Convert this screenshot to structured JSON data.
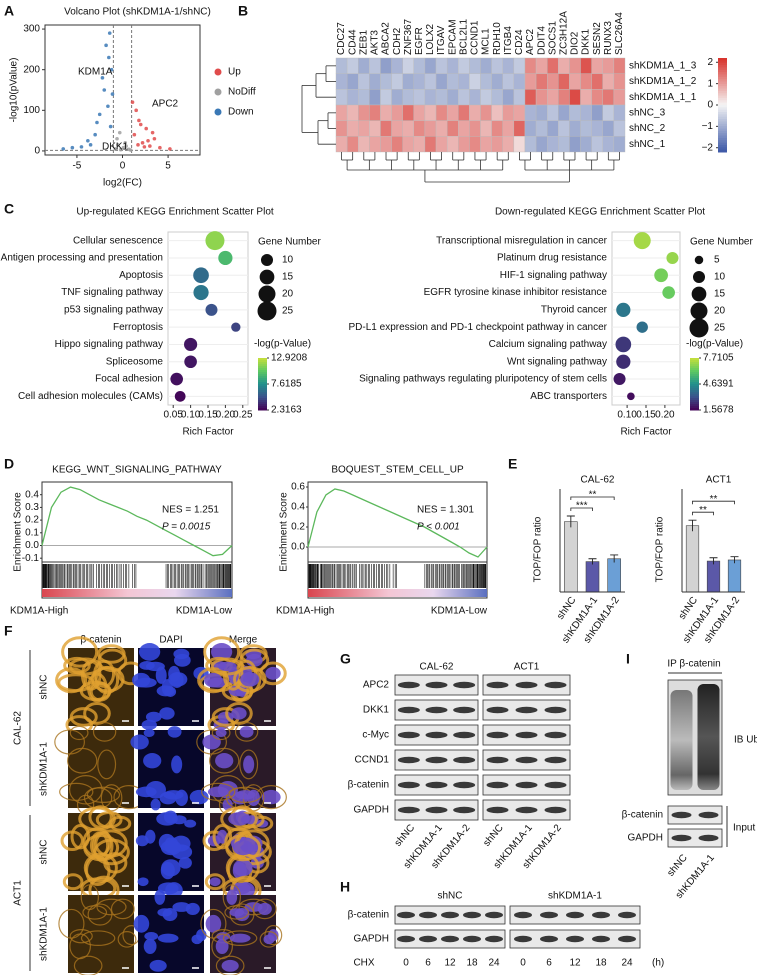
{
  "panel_labels": [
    "A",
    "B",
    "C",
    "D",
    "E",
    "F",
    "G",
    "H",
    "I"
  ],
  "chart_data": [
    {
      "type": "scatter",
      "title": "Volcano Plot (shKDM1A-1/shNC)",
      "xlabel": "log2(FC)",
      "ylabel": "-log10(pValue)",
      "xlim": [
        -8.5,
        8.5
      ],
      "ylim": [
        -10,
        310
      ],
      "xticks": [
        -5,
        0,
        5
      ],
      "yticks": [
        0,
        100,
        200,
        300
      ],
      "cutoffs": {
        "x": [
          -1,
          1
        ],
        "y": 1.3
      },
      "series": [
        {
          "name": "Up",
          "color": "#e04b4b",
          "x": [
            1.3,
            1.8,
            2.2,
            2.6,
            3.0,
            3.5,
            4.1,
            1.5,
            2.0,
            2.8,
            1.1,
            5.2,
            1.7,
            2.4,
            3.3
          ],
          "y": [
            40,
            75,
            20,
            55,
            12,
            30,
            8,
            100,
            65,
            25,
            120,
            5,
            15,
            10,
            45
          ]
        },
        {
          "name": "NoDiff",
          "color": "#a0a0a0",
          "x": [
            -0.8,
            -0.5,
            -0.2,
            0.1,
            0.4,
            0.7,
            -0.6,
            0.3,
            0.9,
            -0.3
          ],
          "y": [
            5,
            15,
            3,
            8,
            12,
            4,
            30,
            20,
            2,
            45
          ]
        },
        {
          "name": "Down",
          "color": "#3a78b5",
          "x": [
            -1.3,
            -1.6,
            -2.0,
            -2.5,
            -3.0,
            -3.8,
            -4.5,
            -1.2,
            -1.8,
            -2.2,
            -1.5,
            -2.8,
            -5.5,
            -1.1,
            -1.4,
            -3.5,
            -6.5
          ],
          "y": [
            60,
            110,
            150,
            90,
            40,
            25,
            10,
            200,
            260,
            180,
            230,
            70,
            8,
            140,
            290,
            15,
            5
          ]
        }
      ],
      "annotations": [
        "KDM1A",
        "APC2",
        "DKK1"
      ]
    },
    {
      "type": "heatmap",
      "columns": [
        "CDC27",
        "CD44",
        "ZEB1",
        "AKT3",
        "ABCA2",
        "CDH2",
        "ZNF367",
        "EGFR",
        "LOLX2",
        "ITGAV",
        "EPCAM",
        "BCL2L1",
        "CCND1",
        "MCL1",
        "RDH10",
        "ITGB4",
        "CD24",
        "APC2",
        "DDIT4",
        "SOCS1",
        "ZC3H12A",
        "DIO2",
        "DKK1",
        "SESN2",
        "RUNX3",
        "SLC26A4"
      ],
      "highlighted": [
        17,
        22
      ],
      "highlight_color": "#d62728",
      "rows": [
        "shKDM1A_1_3",
        "shKDM1A_1_2",
        "shKDM1A_1_1",
        "shNC_3",
        "shNC_2",
        "shNC_1"
      ],
      "values": [
        [
          -0.8,
          -0.6,
          -1.0,
          -0.7,
          -1.2,
          -0.9,
          -0.5,
          -0.8,
          -1.1,
          -0.7,
          -0.9,
          -0.6,
          -0.8,
          -1.0,
          -0.7,
          -0.9,
          -0.6,
          1.2,
          0.9,
          1.5,
          0.8,
          1.1,
          1.8,
          0.9,
          1.0,
          1.3
        ],
        [
          -0.9,
          -1.1,
          -0.7,
          -1.0,
          -0.8,
          -0.6,
          -1.0,
          -0.9,
          -0.7,
          -1.1,
          -0.8,
          -0.9,
          -0.5,
          -0.8,
          -1.0,
          -0.7,
          -0.9,
          1.0,
          1.4,
          1.1,
          1.6,
          0.9,
          1.2,
          1.5,
          0.8,
          1.1
        ],
        [
          -0.7,
          -0.9,
          -0.8,
          -1.2,
          -0.6,
          -1.0,
          -0.8,
          -0.7,
          -0.9,
          -0.8,
          -1.0,
          -0.7,
          -0.9,
          -0.6,
          -0.8,
          -1.1,
          -0.7,
          1.7,
          1.1,
          0.9,
          1.3,
          1.9,
          0.8,
          1.2,
          1.4,
          1.0
        ],
        [
          0.9,
          0.7,
          1.1,
          1.3,
          0.8,
          1.0,
          1.5,
          0.9,
          0.7,
          1.2,
          0.9,
          1.4,
          0.8,
          1.1,
          0.6,
          1.0,
          0.9,
          -0.9,
          -1.0,
          -0.7,
          -1.1,
          -0.8,
          -0.9,
          -1.2,
          -0.6,
          -0.9
        ],
        [
          1.1,
          0.8,
          0.9,
          0.7,
          1.4,
          0.9,
          0.8,
          1.2,
          1.0,
          0.8,
          1.3,
          0.9,
          1.1,
          0.7,
          1.2,
          0.9,
          1.6,
          -1.0,
          -0.8,
          -1.1,
          -0.7,
          -1.0,
          -0.8,
          -0.9,
          -1.1,
          -0.7
        ],
        [
          0.8,
          1.2,
          0.7,
          0.9,
          1.0,
          1.3,
          0.9,
          0.8,
          1.4,
          0.9,
          0.7,
          1.0,
          1.2,
          0.9,
          1.0,
          0.8,
          0.3,
          -0.8,
          -1.1,
          -0.9,
          -0.8,
          -1.2,
          -1.0,
          -0.7,
          -0.9,
          -1.0
        ]
      ],
      "clim": [
        -2.2,
        2.2
      ],
      "cticks": [
        2,
        1,
        0,
        {
          "value": -1,
          "label": "−1"
        },
        {
          "value": -2,
          "label": "−2"
        }
      ],
      "colors": [
        "#3b57a6",
        "#f5f5f5",
        "#d7302a"
      ]
    },
    {
      "type": "bubble",
      "title": "Up-regulated KEGG Enrichment Scatter Plot",
      "xlabel": "Rich Factor",
      "categories": [
        "Cellular senescence",
        "Antigen processing and presentation",
        "Apoptosis",
        "TNF signaling pathway",
        "p53 signaling pathway",
        "Ferroptosis",
        "Hippo signaling pathway",
        "Spliceosome",
        "Focal adhesion",
        "Cell adhesion molecules (CAMs)"
      ],
      "x": [
        0.17,
        0.2,
        0.13,
        0.13,
        0.16,
        0.23,
        0.1,
        0.1,
        0.06,
        0.07
      ],
      "sizes": [
        25,
        14,
        17,
        16,
        10,
        6,
        12,
        11,
        11,
        8
      ],
      "colors": [
        11.5,
        9.5,
        6,
        6.5,
        5,
        4.5,
        3,
        3,
        2.8,
        2.5
      ],
      "xlim": [
        0.035,
        0.265
      ],
      "xticks": [
        0.05,
        {
          "value": 0.1,
          "label": "0.10"
        },
        0.15,
        {
          "value": 0.2,
          "label": "0.20"
        },
        0.25
      ],
      "size_title": "Gene Number",
      "size_ticks": [
        10,
        15,
        20,
        25
      ],
      "color_title": "-log(p-Value)",
      "color_ticks": [
        12.9208,
        7.6185,
        2.3163
      ]
    },
    {
      "type": "bubble",
      "title": "Down-regulated KEGG Enrichment Scatter Plot",
      "xlabel": "Rich Factor",
      "categories": [
        "Transcriptional misregulation in cancer",
        "Platinum drug resistance",
        "HIF-1 signaling pathway",
        "EGFR tyrosine kinase inhibitor resistance",
        "Thyroid cancer",
        "PD-L1 expression and PD-1 checkpoint pathway in cancer",
        "Calcium signaling pathway",
        "Wnt signaling pathway",
        "Signaling pathways regulating pluripotency of stem cells",
        "ABC transporters"
      ],
      "x": [
        0.14,
        0.22,
        0.19,
        0.21,
        0.09,
        0.14,
        0.09,
        0.09,
        0.08,
        0.11
      ],
      "sizes": [
        20,
        10,
        13,
        11,
        14,
        9,
        17,
        14,
        10,
        4
      ],
      "colors": [
        7.2,
        7.0,
        6.5,
        6.3,
        4.0,
        3.8,
        2.6,
        2.4,
        2.0,
        1.8
      ],
      "xlim": [
        0.06,
        0.24
      ],
      "xticks": [
        {
          "value": 0.1,
          "label": "0.10"
        },
        0.15,
        {
          "value": 0.2,
          "label": "0.20"
        }
      ],
      "size_title": "Gene Number",
      "size_ticks": [
        5,
        10,
        15,
        20,
        25
      ],
      "color_title": "-log(p-Value)",
      "color_ticks": [
        7.7105,
        4.6391,
        1.5678
      ]
    },
    {
      "type": "gsea",
      "title": "KEGG_WNT_SIGNALING_PATHWAY",
      "nes": "NES = 1.251",
      "p": "P = 0.0015",
      "ylabel": "Enrichment Score",
      "left_label": "KDM1A-High",
      "right_label": "KDM1A-Low",
      "color": "#5cb85c",
      "ylim": [
        -0.13,
        0.5
      ],
      "yticks": [
        {
          "value": -0.1,
          "label": "-0.1"
        },
        {
          "value": 0,
          "label": "0.0"
        },
        0.1,
        0.2,
        0.3,
        0.4
      ],
      "es": [
        0,
        0.3,
        0.42,
        0.46,
        0.44,
        0.4,
        0.36,
        0.33,
        0.3,
        0.27,
        0.23,
        0.2,
        0.16,
        0.12,
        0.08,
        0.04,
        0.0,
        -0.04,
        -0.08,
        -0.07,
        0
      ]
    },
    {
      "type": "gsea",
      "title": "BOQUEST_STEM_CELL_UP",
      "nes": "NES = 1.301",
      "p": "P < 0.001",
      "ylabel": "Enrichment Score",
      "left_label": "KDM1A-High",
      "right_label": "KDM1A-Low",
      "color": "#5cb85c",
      "ylim": [
        -0.15,
        0.65
      ],
      "yticks": [
        {
          "value": 0,
          "label": "0.0"
        },
        0.2,
        0.4,
        0.6
      ],
      "es": [
        0,
        0.35,
        0.52,
        0.58,
        0.56,
        0.52,
        0.48,
        0.44,
        0.4,
        0.36,
        0.32,
        0.28,
        0.24,
        0.2,
        0.15,
        0.1,
        0.05,
        0.0,
        -0.06,
        -0.1,
        0
      ]
    },
    {
      "type": "bar",
      "title": "CAL-62",
      "ylabel": "TOP/FOP ratio",
      "categories": [
        "shNC",
        "shKDM1A-1",
        "shKDM1A-2"
      ],
      "values": [
        3.7,
        1.6,
        1.75
      ],
      "errors": [
        0.3,
        0.15,
        0.2
      ],
      "colors": [
        "#d3d3d3",
        "#5b58a8",
        "#6b9fd6"
      ],
      "ylim": [
        0,
        5
      ],
      "significance": [
        "***",
        "**"
      ]
    },
    {
      "type": "bar",
      "title": "ACT1",
      "ylabel": "TOP/FOP ratio",
      "categories": [
        "shNC",
        "shKDM1A-1",
        "shKDM1A-2"
      ],
      "values": [
        3.0,
        1.4,
        1.45
      ],
      "errors": [
        0.25,
        0.15,
        0.15
      ],
      "colors": [
        "#d3d3d3",
        "#5b58a8",
        "#6b9fd6"
      ],
      "ylim": [
        0,
        4.3
      ],
      "significance": [
        "**",
        "**"
      ]
    }
  ],
  "if_staining": {
    "columns": [
      "β-catenin",
      "DAPI",
      "Merge"
    ],
    "cell_lines": [
      "CAL-62",
      "ACT1"
    ],
    "rows": [
      "shNC",
      "shKDM1A-1",
      "shNC",
      "shKDM1A-1"
    ]
  },
  "blot_g": {
    "cell_lines": [
      "CAL-62",
      "ACT1"
    ],
    "proteins": [
      "APC2",
      "DKK1",
      "c-Myc",
      "CCND1",
      "β-catenin",
      "GAPDH"
    ],
    "lanes": [
      "shNC",
      "shKDM1A-1",
      "shKDM1A-2",
      "shNC",
      "shKDM1A-1",
      "shKDM1A-2"
    ]
  },
  "blot_h": {
    "groups": [
      "shNC",
      "shKDM1A-1"
    ],
    "proteins": [
      "β-catenin",
      "GAPDH"
    ],
    "treatment": "CHX",
    "times": [
      0,
      6,
      12,
      18,
      24,
      0,
      6,
      12,
      18,
      24
    ],
    "unit": "(h)"
  },
  "blot_i": {
    "ip": "IP β-catenin",
    "ib": "IB Ub",
    "proteins": [
      "β-catenin",
      "GAPDH"
    ],
    "input": "Input",
    "lanes": [
      "shNC",
      "shKDM1A-1"
    ]
  }
}
